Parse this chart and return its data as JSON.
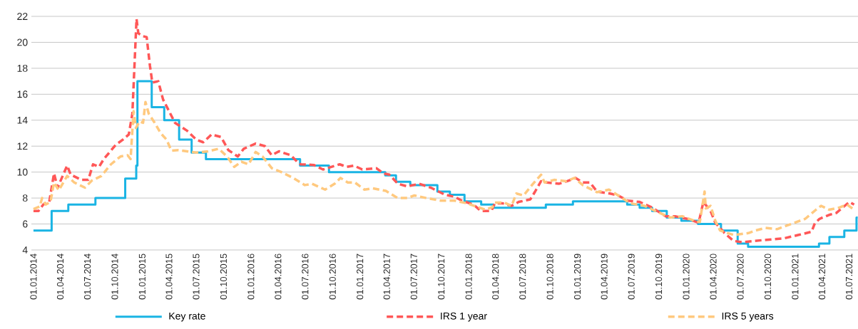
{
  "chart_data": {
    "type": "line",
    "xlim": [
      "2013-12-25",
      "2021-07-31"
    ],
    "ylim": [
      4,
      22
    ],
    "yticks": [
      4,
      6,
      8,
      10,
      12,
      14,
      16,
      18,
      20,
      22
    ],
    "xticks": [
      {
        "value": "2014-01-01",
        "label": "01.01.2014"
      },
      {
        "value": "2014-04-01",
        "label": "01.04.2014"
      },
      {
        "value": "2014-07-01",
        "label": "01.07.2014"
      },
      {
        "value": "2014-10-01",
        "label": "01.10.2014"
      },
      {
        "value": "2015-01-01",
        "label": "01.01.2015"
      },
      {
        "value": "2015-04-01",
        "label": "01.04.2015"
      },
      {
        "value": "2015-07-01",
        "label": "01.07.2015"
      },
      {
        "value": "2015-10-01",
        "label": "01.10.2015"
      },
      {
        "value": "2016-01-01",
        "label": "01.01.2016"
      },
      {
        "value": "2016-04-01",
        "label": "01.04.2016"
      },
      {
        "value": "2016-07-01",
        "label": "01.07.2016"
      },
      {
        "value": "2016-10-01",
        "label": "01.10.2016"
      },
      {
        "value": "2017-01-01",
        "label": "01.01.2017"
      },
      {
        "value": "2017-04-01",
        "label": "01.04.2017"
      },
      {
        "value": "2017-07-01",
        "label": "01.07.2017"
      },
      {
        "value": "2017-10-01",
        "label": "01.10.2017"
      },
      {
        "value": "2018-01-01",
        "label": "01.01.2018"
      },
      {
        "value": "2018-04-01",
        "label": "01.04.2018"
      },
      {
        "value": "2018-07-01",
        "label": "01.07.2018"
      },
      {
        "value": "2018-10-01",
        "label": "01.10.2018"
      },
      {
        "value": "2019-01-01",
        "label": "01.01.2019"
      },
      {
        "value": "2019-04-01",
        "label": "01.04.2019"
      },
      {
        "value": "2019-07-01",
        "label": "01.07.2019"
      },
      {
        "value": "2019-10-01",
        "label": "01.10.2019"
      },
      {
        "value": "2020-01-01",
        "label": "01.01.2020"
      },
      {
        "value": "2020-04-01",
        "label": "01.04.2020"
      },
      {
        "value": "2020-07-01",
        "label": "01.07.2020"
      },
      {
        "value": "2020-10-01",
        "label": "01.10.2020"
      },
      {
        "value": "2021-01-01",
        "label": "01.01.2021"
      },
      {
        "value": "2021-04-01",
        "label": "01.04.2021"
      },
      {
        "value": "2021-07-01",
        "label": "01.07.2021"
      }
    ],
    "grid": "y",
    "legend": "bottom",
    "series": [
      {
        "name": "Key rate",
        "type": "step",
        "color": "#1ab4e4",
        "line_style": "solid",
        "x": [
          "2014-01-01",
          "2014-03-03",
          "2014-04-28",
          "2014-07-28",
          "2014-11-05",
          "2014-12-12",
          "2014-12-16",
          "2015-02-02",
          "2015-03-16",
          "2015-05-05",
          "2015-06-16",
          "2015-08-03",
          "2016-06-14",
          "2016-09-19",
          "2017-03-27",
          "2017-05-02",
          "2017-06-19",
          "2017-09-18",
          "2017-10-30",
          "2017-12-18",
          "2018-02-12",
          "2018-03-26",
          "2018-09-17",
          "2018-12-17",
          "2019-06-17",
          "2019-07-29",
          "2019-09-09",
          "2019-10-28",
          "2019-12-16",
          "2020-02-10",
          "2020-04-27",
          "2020-06-22",
          "2020-07-27",
          "2021-03-22",
          "2021-04-26",
          "2021-06-15",
          "2021-07-26",
          "2021-07-30"
        ],
        "values": [
          5.5,
          7.0,
          7.5,
          8.0,
          9.5,
          10.5,
          17,
          15,
          14,
          12.5,
          11.5,
          11,
          10.5,
          10,
          9.75,
          9.25,
          9,
          8.5,
          8.25,
          7.75,
          7.5,
          7.25,
          7.5,
          7.75,
          7.5,
          7.25,
          7,
          6.5,
          6.25,
          6,
          5.5,
          4.5,
          4.25,
          4.5,
          5,
          5.5,
          6.5,
          6.5
        ]
      },
      {
        "name": "IRS 1 year",
        "type": "line",
        "color": "#ff5757",
        "line_style": "dashed",
        "x": [
          "2014-01-01",
          "2014-01-18",
          "2014-02-03",
          "2014-02-23",
          "2014-03-11",
          "2014-03-23",
          "2014-04-24",
          "2014-05-06",
          "2014-06-11",
          "2014-07-04",
          "2014-07-20",
          "2014-08-09",
          "2014-08-25",
          "2014-10-04",
          "2014-10-28",
          "2014-11-17",
          "2014-11-29",
          "2014-12-13",
          "2014-12-19",
          "2014-12-31",
          "2015-01-16",
          "2015-01-27",
          "2015-02-04",
          "2015-02-24",
          "2015-03-12",
          "2015-04-01",
          "2015-04-21",
          "2015-05-31",
          "2015-07-02",
          "2015-07-25",
          "2015-08-22",
          "2015-09-23",
          "2015-10-17",
          "2015-11-18",
          "2015-12-08",
          "2016-01-17",
          "2016-02-17",
          "2016-03-11",
          "2016-04-04",
          "2016-05-14",
          "2016-06-04",
          "2016-06-16",
          "2016-07-30",
          "2016-08-30",
          "2016-10-25",
          "2016-11-18",
          "2016-12-12",
          "2017-01-09",
          "2017-02-25",
          "2017-03-21",
          "2017-04-10",
          "2017-05-08",
          "2017-06-09",
          "2017-07-19",
          "2017-08-27",
          "2017-10-14",
          "2017-11-15",
          "2017-12-09",
          "2018-01-17",
          "2018-02-11",
          "2018-03-18",
          "2018-03-30",
          "2018-04-23",
          "2018-05-25",
          "2018-06-18",
          "2018-07-27",
          "2018-08-12",
          "2018-09-01",
          "2018-09-21",
          "2018-10-31",
          "2018-11-28",
          "2018-12-26",
          "2019-01-19",
          "2019-02-12",
          "2019-03-08",
          "2019-04-20",
          "2019-05-18",
          "2019-06-19",
          "2019-07-29",
          "2019-09-06",
          "2019-10-24",
          "2019-11-25",
          "2020-01-04",
          "2020-02-12",
          "2020-02-28",
          "2020-03-23",
          "2020-04-08",
          "2020-05-09",
          "2020-06-08",
          "2020-07-08",
          "2020-08-17",
          "2020-10-06",
          "2020-11-25",
          "2021-01-11",
          "2021-02-25",
          "2021-03-08",
          "2021-03-24",
          "2021-04-25",
          "2021-05-19",
          "2021-07-02",
          "2021-07-18"
        ],
        "values": [
          7.0,
          7.0,
          7.5,
          7.7,
          9.9,
          8.8,
          10.5,
          9.8,
          9.4,
          9.4,
          10.6,
          10.4,
          11.0,
          12.1,
          12.5,
          12.9,
          14.5,
          21.8,
          20.7,
          20.5,
          20.4,
          18.2,
          16.9,
          17.0,
          15.6,
          14.7,
          13.8,
          13.2,
          12.5,
          12.3,
          12.9,
          12.7,
          11.7,
          11.2,
          11.8,
          12.2,
          12.0,
          11.3,
          11.6,
          11.3,
          10.8,
          10.6,
          10.55,
          10.2,
          10.6,
          10.4,
          10.5,
          10.2,
          10.3,
          9.9,
          9.8,
          9.1,
          8.9,
          9.1,
          8.8,
          8.25,
          8.1,
          7.8,
          7.5,
          7.0,
          7.0,
          7.6,
          7.6,
          7.4,
          7.7,
          7.9,
          8.5,
          9.3,
          9.2,
          9.1,
          9.3,
          9.55,
          9.2,
          9.2,
          8.5,
          8.35,
          8.2,
          7.8,
          7.7,
          7.3,
          6.6,
          6.6,
          6.4,
          6.1,
          7.7,
          7.0,
          6.1,
          5.3,
          4.7,
          4.6,
          4.7,
          4.8,
          4.9,
          5.15,
          5.4,
          6.05,
          6.4,
          6.7,
          6.85,
          7.7,
          7.5
        ]
      },
      {
        "name": "IRS 5 years",
        "type": "line",
        "color": "#ffc97f",
        "line_style": "dashed",
        "x": [
          "2014-01-01",
          "2014-01-22",
          "2014-01-30",
          "2014-02-11",
          "2014-02-27",
          "2014-03-11",
          "2014-03-27",
          "2014-04-24",
          "2014-05-18",
          "2014-06-23",
          "2014-07-16",
          "2014-08-17",
          "2014-09-18",
          "2014-10-20",
          "2014-11-13",
          "2014-11-23",
          "2014-12-03",
          "2014-12-11",
          "2014-12-23",
          "2015-01-04",
          "2015-01-12",
          "2015-01-23",
          "2015-02-12",
          "2015-03-04",
          "2015-03-24",
          "2015-04-09",
          "2015-05-03",
          "2015-05-31",
          "2015-07-02",
          "2015-08-10",
          "2015-09-15",
          "2015-10-13",
          "2015-11-06",
          "2015-11-30",
          "2015-12-24",
          "2016-01-17",
          "2016-02-09",
          "2016-03-11",
          "2016-04-12",
          "2016-05-22",
          "2016-06-30",
          "2016-07-24",
          "2016-09-06",
          "2016-10-08",
          "2016-10-28",
          "2016-11-21",
          "2016-12-15",
          "2017-01-16",
          "2017-02-13",
          "2017-03-29",
          "2017-05-08",
          "2017-06-09",
          "2017-07-03",
          "2017-08-12",
          "2017-09-29",
          "2017-11-15",
          "2017-12-25",
          "2018-01-26",
          "2018-02-26",
          "2018-03-22",
          "2018-03-30",
          "2018-05-01",
          "2018-05-25",
          "2018-06-10",
          "2018-07-04",
          "2018-08-05",
          "2018-09-01",
          "2018-09-13",
          "2018-10-15",
          "2018-11-24",
          "2018-12-22",
          "2019-01-19",
          "2019-03-08",
          "2019-04-17",
          "2019-05-18",
          "2019-06-27",
          "2019-08-14",
          "2019-09-30",
          "2019-11-08",
          "2019-12-19",
          "2020-01-28",
          "2020-02-16",
          "2020-03-03",
          "2020-03-07",
          "2020-03-23",
          "2020-04-08",
          "2020-04-24",
          "2020-05-19",
          "2020-06-10",
          "2020-07-28",
          "2020-08-21",
          "2020-09-23",
          "2020-11-01",
          "2020-12-18",
          "2021-02-04",
          "2021-03-12",
          "2021-03-29",
          "2021-04-25",
          "2021-05-27",
          "2021-06-24",
          "2021-07-18"
        ],
        "values": [
          7.15,
          7.35,
          8.0,
          7.5,
          7.7,
          9.2,
          8.6,
          9.7,
          9.2,
          8.8,
          9.35,
          9.7,
          10.6,
          11.2,
          11.3,
          11.0,
          14.7,
          13.4,
          13.9,
          13.8,
          15.4,
          14.5,
          13.8,
          13.0,
          12.5,
          11.65,
          11.7,
          11.6,
          11.5,
          11.6,
          11.8,
          11.2,
          10.4,
          10.8,
          10.6,
          11.55,
          11.2,
          10.3,
          10.0,
          9.55,
          9.0,
          9.1,
          8.65,
          9.1,
          9.55,
          9.2,
          9.2,
          8.65,
          8.75,
          8.55,
          8.0,
          8.0,
          8.2,
          8.0,
          7.8,
          7.8,
          7.6,
          7.35,
          7.1,
          7.3,
          7.65,
          7.65,
          7.4,
          8.35,
          8.2,
          9.1,
          9.8,
          9.2,
          9.4,
          9.3,
          9.55,
          9.0,
          8.45,
          8.65,
          8.2,
          7.6,
          7.4,
          6.9,
          6.5,
          6.6,
          6.25,
          6.15,
          8.5,
          7.2,
          7.4,
          6.25,
          5.5,
          5.3,
          5.15,
          5.3,
          5.5,
          5.7,
          5.6,
          6.0,
          6.4,
          7.1,
          7.4,
          7.1,
          7.25,
          7.5,
          7.1
        ]
      }
    ]
  }
}
